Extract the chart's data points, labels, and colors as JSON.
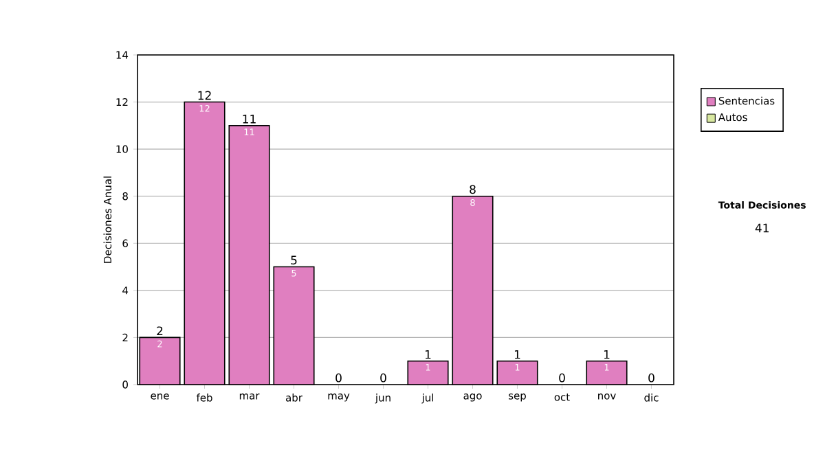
{
  "chart_data": {
    "type": "bar",
    "ylabel": "Decisiones Anual",
    "categories": [
      "ene",
      "feb",
      "mar",
      "abr",
      "may",
      "jun",
      "jul",
      "ago",
      "sep",
      "oct",
      "nov",
      "dic"
    ],
    "series": [
      {
        "name": "Sentencias",
        "color": "#e07fc0",
        "values": [
          2,
          12,
          11,
          5,
          0,
          0,
          1,
          8,
          1,
          0,
          1,
          0
        ],
        "value_labels": [
          "2",
          "12",
          "11",
          "5",
          null,
          null,
          "1",
          "8",
          "1",
          null,
          "1",
          null
        ]
      },
      {
        "name": "Autos",
        "color": "#d8e8a0",
        "values": [
          0,
          0,
          0,
          0,
          0,
          0,
          0,
          0,
          0,
          0,
          0,
          0
        ]
      }
    ],
    "stacked": true,
    "totals": [
      "2",
      "12",
      "11",
      "5",
      "0",
      "0",
      "1",
      "8",
      "1",
      "0",
      "1",
      "0"
    ],
    "ylim": [
      0,
      14
    ],
    "yticks": [
      0,
      2,
      4,
      6,
      8,
      10,
      12,
      14
    ],
    "grid": "y",
    "legend": "right",
    "annotations": [
      "Total Decisiones",
      "41"
    ]
  }
}
